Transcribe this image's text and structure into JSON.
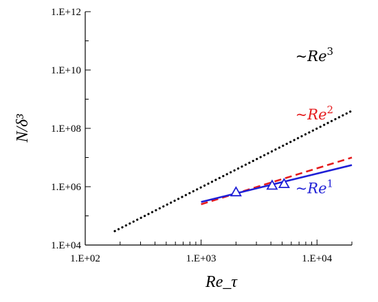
{
  "chart_data": {
    "type": "scatter",
    "xlabel": "Re_τ",
    "ylabel": "N/δ³",
    "xscale": "log",
    "yscale": "log",
    "xlim": [
      100,
      20000
    ],
    "ylim": [
      10000,
      1000000000000
    ],
    "x_ticks": [
      100,
      1000,
      10000
    ],
    "x_tick_labels": [
      "1.E+02",
      "1.E+03",
      "1.E+04"
    ],
    "y_ticks": [
      10000,
      1000000,
      100000000,
      10000000000,
      1000000000000
    ],
    "y_tick_labels": [
      "1.E+04",
      "1.E+06",
      "1.E+08",
      "1.E+10",
      "1.E+12"
    ],
    "grid": false,
    "series": [
      {
        "kind": "line",
        "style": "dotted",
        "color": "#000000",
        "x": [
          180,
          20000
        ],
        "y": [
          30000,
          400000000
        ]
      },
      {
        "kind": "line",
        "style": "dashed",
        "color": "#e41a1c",
        "x": [
          1000,
          20000
        ],
        "y": [
          250000,
          10000000
        ]
      },
      {
        "kind": "line",
        "style": "solid",
        "color": "#1f1fd6",
        "x": [
          1000,
          20000
        ],
        "y": [
          300000,
          5500000
        ]
      },
      {
        "kind": "markers",
        "marker": "open-triangle",
        "color": "#1f1fd6",
        "x": [
          2000,
          4100,
          5200
        ],
        "y": [
          650000,
          1100000,
          1250000
        ]
      }
    ],
    "annotations": [
      {
        "text": "~Re",
        "exponent": "3",
        "color": "#000000",
        "x": 6500,
        "y": 20000000000
      },
      {
        "text": "~Re",
        "exponent": "2",
        "color": "#e41a1c",
        "x": 6500,
        "y": 200000000
      },
      {
        "text": "~Re",
        "exponent": "1",
        "color": "#1f1fd6",
        "x": 6500,
        "y": 600000
      }
    ]
  }
}
